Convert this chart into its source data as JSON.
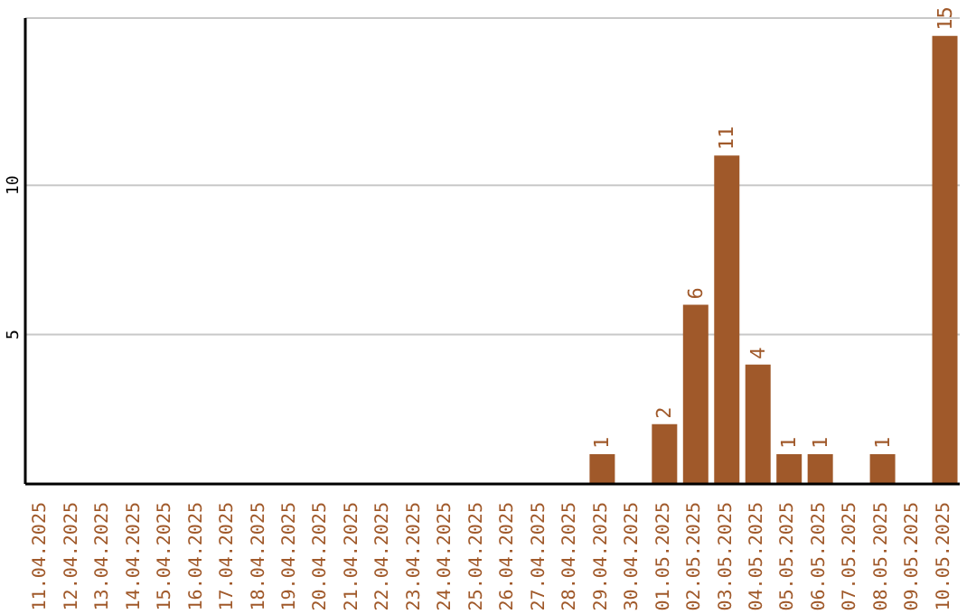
{
  "chart_data": {
    "type": "bar",
    "categories": [
      "11.04.2025",
      "12.04.2025",
      "13.04.2025",
      "14.04.2025",
      "15.04.2025",
      "16.04.2025",
      "17.04.2025",
      "18.04.2025",
      "19.04.2025",
      "20.04.2025",
      "21.04.2025",
      "22.04.2025",
      "23.04.2025",
      "24.04.2025",
      "25.04.2025",
      "26.04.2025",
      "27.04.2025",
      "28.04.2025",
      "29.04.2025",
      "30.04.2025",
      "01.05.2025",
      "02.05.2025",
      "03.05.2025",
      "04.05.2025",
      "05.05.2025",
      "06.05.2025",
      "07.05.2025",
      "08.05.2025",
      "09.05.2025",
      "10.05.2025"
    ],
    "values": [
      0,
      0,
      0,
      0,
      0,
      0,
      0,
      0,
      0,
      0,
      0,
      0,
      0,
      0,
      0,
      0,
      0,
      0,
      1,
      0,
      2,
      6,
      11,
      4,
      1,
      1,
      0,
      1,
      0,
      15
    ],
    "value_labels": [
      null,
      null,
      null,
      null,
      null,
      null,
      null,
      null,
      null,
      null,
      null,
      null,
      null,
      null,
      null,
      null,
      null,
      null,
      "1",
      null,
      "2",
      "6",
      "11",
      "4",
      "1",
      "1",
      null,
      "1",
      null,
      "15"
    ],
    "color": "#a0592a",
    "ylim": [
      0,
      15.6
    ],
    "yticks": [
      5,
      10
    ],
    "grid": "y"
  }
}
